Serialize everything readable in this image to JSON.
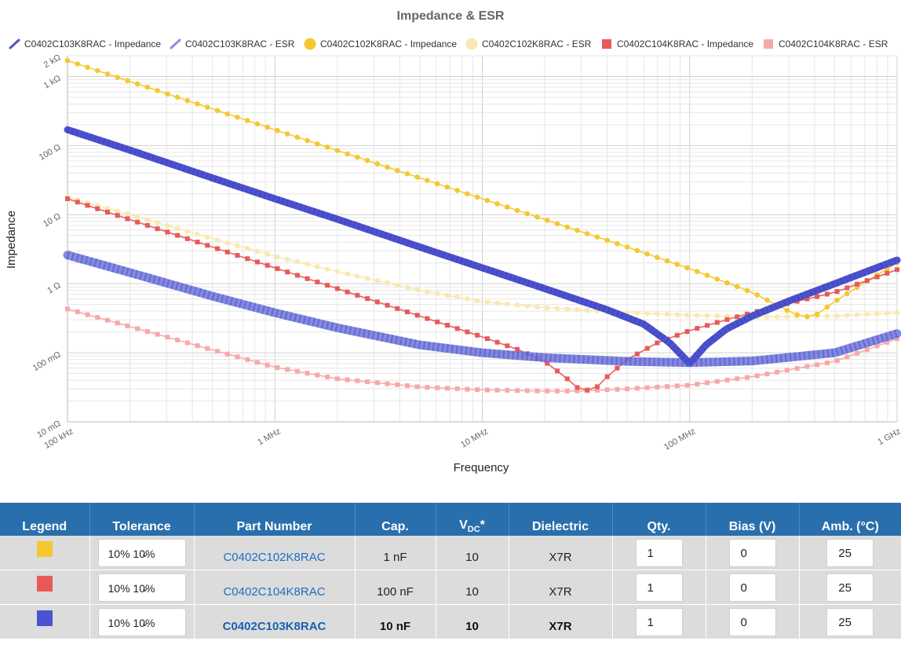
{
  "chart_data": {
    "type": "line",
    "title": "Impedance & ESR",
    "xlabel": "Frequency",
    "ylabel": "Impedance",
    "x_scale": "log",
    "y_scale": "log",
    "xlim": [
      100000,
      1000000000
    ],
    "ylim": [
      0.01,
      2000
    ],
    "x_ticks": [
      {
        "value": 100000,
        "label": "100 kHz"
      },
      {
        "value": 1000000,
        "label": "1 MHz"
      },
      {
        "value": 10000000,
        "label": "10 MHz"
      },
      {
        "value": 100000000,
        "label": "100 MHz"
      },
      {
        "value": 1000000000,
        "label": "1 GHz"
      }
    ],
    "y_ticks": [
      {
        "value": 2000,
        "label": "2 kΩ"
      },
      {
        "value": 1000,
        "label": "1 kΩ"
      },
      {
        "value": 100,
        "label": "100 Ω"
      },
      {
        "value": 10,
        "label": "10 Ω"
      },
      {
        "value": 1,
        "label": "1 Ω"
      },
      {
        "value": 0.1,
        "label": "100 mΩ"
      },
      {
        "value": 0.01,
        "label": "10 mΩ"
      }
    ],
    "grid": true,
    "legend_position": "top",
    "series": [
      {
        "name": "C0402C103K8RAC - Impedance",
        "color": "#4c52cf",
        "marker": "line",
        "x": [
          100000,
          200000,
          500000,
          1000000,
          2000000,
          5000000,
          10000000,
          20000000,
          40000000,
          60000000,
          80000000,
          100000000,
          120000000,
          150000000,
          200000000,
          300000000,
          500000000,
          1000000000
        ],
        "y": [
          170,
          86,
          34,
          17,
          8.6,
          3.4,
          1.7,
          0.85,
          0.42,
          0.26,
          0.14,
          0.07,
          0.13,
          0.22,
          0.34,
          0.56,
          1.0,
          2.2
        ]
      },
      {
        "name": "C0402C103K8RAC - ESR",
        "color": "#8a8ee6",
        "marker": "dash",
        "x": [
          100000,
          200000,
          500000,
          1000000,
          2000000,
          5000000,
          10000000,
          20000000,
          50000000,
          100000000,
          200000000,
          500000000,
          1000000000
        ],
        "y": [
          2.6,
          1.45,
          0.66,
          0.38,
          0.23,
          0.13,
          0.1,
          0.085,
          0.075,
          0.072,
          0.076,
          0.1,
          0.19
        ]
      },
      {
        "name": "C0402C102K8RAC - Impedance",
        "color": "#f5c832",
        "marker": "circle",
        "x": [
          100000,
          200000,
          500000,
          1000000,
          2000000,
          5000000,
          10000000,
          20000000,
          50000000,
          100000000,
          200000000,
          300000000,
          350000000,
          400000000,
          500000000,
          700000000,
          1000000000
        ],
        "y": [
          1700,
          850,
          340,
          170,
          85,
          34,
          17,
          8.5,
          3.4,
          1.65,
          0.75,
          0.4,
          0.33,
          0.34,
          0.55,
          1.05,
          2.0
        ]
      },
      {
        "name": "C0402C102K8RAC - ESR",
        "color": "#f8e9b3",
        "marker": "circle",
        "x": [
          100000,
          200000,
          500000,
          1000000,
          2000000,
          5000000,
          10000000,
          20000000,
          50000000,
          100000000,
          200000000,
          500000000,
          1000000000
        ],
        "y": [
          18,
          10,
          4.5,
          2.5,
          1.5,
          0.8,
          0.55,
          0.45,
          0.38,
          0.35,
          0.33,
          0.34,
          0.38
        ]
      },
      {
        "name": "C0402C104K8RAC - Impedance",
        "color": "#e85a5a",
        "marker": "square",
        "x": [
          100000,
          200000,
          500000,
          1000000,
          2000000,
          5000000,
          10000000,
          15000000,
          20000000,
          25000000,
          30000000,
          35000000,
          40000000,
          50000000,
          70000000,
          100000000,
          150000000,
          200000000,
          300000000,
          500000000,
          1000000000
        ],
        "y": [
          17,
          8.5,
          3.4,
          1.7,
          0.85,
          0.34,
          0.17,
          0.11,
          0.075,
          0.045,
          0.028,
          0.03,
          0.045,
          0.08,
          0.14,
          0.21,
          0.3,
          0.38,
          0.52,
          0.75,
          1.6
        ]
      },
      {
        "name": "C0402C104K8RAC - ESR",
        "color": "#f7a9a9",
        "marker": "square",
        "x": [
          100000,
          200000,
          500000,
          1000000,
          2000000,
          5000000,
          10000000,
          20000000,
          30000000,
          50000000,
          100000000,
          200000000,
          500000000,
          1000000000
        ],
        "y": [
          0.43,
          0.24,
          0.11,
          0.062,
          0.042,
          0.032,
          0.029,
          0.028,
          0.028,
          0.03,
          0.034,
          0.045,
          0.075,
          0.16
        ]
      }
    ]
  },
  "table": {
    "headers": {
      "legend": "Legend",
      "tolerance": "Tolerance",
      "part_number": "Part Number",
      "cap": "Cap.",
      "vdc_main": "V",
      "vdc_sub": "DC",
      "vdc_suffix": "*",
      "dielectric": "Dielectric",
      "qty": "Qty.",
      "bias": "Bias (V)",
      "amb": "Amb. (°C)"
    },
    "rows": [
      {
        "color": "#f5c832",
        "tolerance": "10% 10%",
        "part_number": "C0402C102K8RAC",
        "cap": "1 nF",
        "vdc": "10",
        "dielectric": "X7R",
        "qty": "1",
        "bias": "0",
        "amb": "25",
        "selected": false
      },
      {
        "color": "#e85a5a",
        "tolerance": "10% 10%",
        "part_number": "C0402C104K8RAC",
        "cap": "100 nF",
        "vdc": "10",
        "dielectric": "X7R",
        "qty": "1",
        "bias": "0",
        "amb": "25",
        "selected": false
      },
      {
        "color": "#4c52cf",
        "tolerance": "10% 10%",
        "part_number": "C0402C103K8RAC",
        "cap": "10 nF",
        "vdc": "10",
        "dielectric": "X7R",
        "qty": "1",
        "bias": "0",
        "amb": "25",
        "selected": true
      }
    ]
  }
}
